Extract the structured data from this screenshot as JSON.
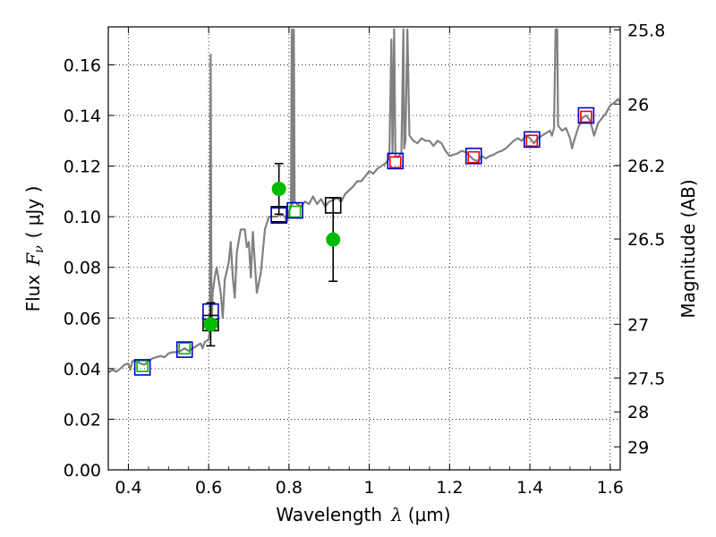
{
  "chart_data": {
    "type": "scatter",
    "xlabel_text": "Wavelength",
    "xlabel_symbol": "λ",
    "xlabel_unit": "(μm)",
    "ylabel_text": "Flux",
    "ylabel_symbol": "F",
    "ylabel_subscript": "ν",
    "ylabel_unit": "( μJy )",
    "y2label": "Magnitude (AB)",
    "xlim": [
      0.35,
      1.625
    ],
    "ylim": [
      0.0,
      0.175
    ],
    "xticks": [
      0.4,
      0.6,
      0.8,
      1.0,
      1.2,
      1.4,
      1.6
    ],
    "xtick_labels": [
      "0.4",
      "0.6",
      "0.8",
      "1",
      "1.2",
      "1.4",
      "1.6"
    ],
    "yticks": [
      0.0,
      0.02,
      0.04,
      0.06,
      0.08,
      0.1,
      0.12,
      0.14,
      0.16
    ],
    "ytick_labels": [
      "0.00",
      "0.02",
      "0.04",
      "0.06",
      "0.08",
      "0.10",
      "0.12",
      "0.14",
      "0.16"
    ],
    "y2ticks": [
      {
        "label": "25.8",
        "flux": 0.1738
      },
      {
        "label": "26",
        "flux": 0.1445
      },
      {
        "label": "26.2",
        "flux": 0.1202
      },
      {
        "label": "26.5",
        "flux": 0.0912
      },
      {
        "label": "27",
        "flux": 0.0575
      },
      {
        "label": "27.5",
        "flux": 0.0363
      },
      {
        "label": "28",
        "flux": 0.0229
      },
      {
        "label": "29",
        "flux": 0.0091
      }
    ],
    "grid": "dotted",
    "colors": {
      "sed_line": "#808080",
      "green_points": "#00bb00",
      "blue_squares": "#0000cc",
      "red_squares": "#ff0000",
      "green_squares": "#00bb00",
      "black_squares": "#000000",
      "errorbars": "#000000"
    },
    "series": [
      {
        "name": "model-sed",
        "style": "line",
        "points": [
          [
            0.35,
            0.0385
          ],
          [
            0.36,
            0.0395
          ],
          [
            0.37,
            0.0388
          ],
          [
            0.38,
            0.04
          ],
          [
            0.39,
            0.0415
          ],
          [
            0.4,
            0.042
          ],
          [
            0.405,
            0.0395
          ],
          [
            0.41,
            0.043
          ],
          [
            0.42,
            0.043
          ],
          [
            0.43,
            0.042
          ],
          [
            0.44,
            0.0415
          ],
          [
            0.45,
            0.043
          ],
          [
            0.46,
            0.044
          ],
          [
            0.47,
            0.0445
          ],
          [
            0.48,
            0.045
          ],
          [
            0.49,
            0.0445
          ],
          [
            0.5,
            0.046
          ],
          [
            0.51,
            0.0465
          ],
          [
            0.52,
            0.0465
          ],
          [
            0.53,
            0.047
          ],
          [
            0.54,
            0.048
          ],
          [
            0.55,
            0.047
          ],
          [
            0.56,
            0.048
          ],
          [
            0.57,
            0.049
          ],
          [
            0.58,
            0.05
          ],
          [
            0.585,
            0.048
          ],
          [
            0.59,
            0.0505
          ],
          [
            0.6,
            0.0515
          ],
          [
            0.603,
            0.056
          ],
          [
            0.605,
            0.164
          ],
          [
            0.607,
            0.056
          ],
          [
            0.61,
            0.07
          ],
          [
            0.615,
            0.076
          ],
          [
            0.62,
            0.08
          ],
          [
            0.63,
            0.07
          ],
          [
            0.635,
            0.06
          ],
          [
            0.64,
            0.075
          ],
          [
            0.65,
            0.082
          ],
          [
            0.655,
            0.09
          ],
          [
            0.66,
            0.076
          ],
          [
            0.665,
            0.068
          ],
          [
            0.67,
            0.086
          ],
          [
            0.68,
            0.095
          ],
          [
            0.69,
            0.095
          ],
          [
            0.695,
            0.088
          ],
          [
            0.7,
            0.09
          ],
          [
            0.705,
            0.076
          ],
          [
            0.71,
            0.094
          ],
          [
            0.715,
            0.082
          ],
          [
            0.72,
            0.07
          ],
          [
            0.73,
            0.078
          ],
          [
            0.74,
            0.095
          ],
          [
            0.75,
            0.1
          ],
          [
            0.76,
            0.1
          ],
          [
            0.77,
            0.1
          ],
          [
            0.78,
            0.101
          ],
          [
            0.79,
            0.1
          ],
          [
            0.795,
            0.098
          ],
          [
            0.8,
            0.102
          ],
          [
            0.805,
            0.104
          ],
          [
            0.807,
            0.174
          ],
          [
            0.809,
            0.105
          ],
          [
            0.812,
            0.174
          ],
          [
            0.814,
            0.106
          ],
          [
            0.82,
            0.105
          ],
          [
            0.83,
            0.104
          ],
          [
            0.84,
            0.106
          ],
          [
            0.85,
            0.105
          ],
          [
            0.86,
            0.108
          ],
          [
            0.87,
            0.105
          ],
          [
            0.88,
            0.107
          ],
          [
            0.89,
            0.104
          ],
          [
            0.9,
            0.106
          ],
          [
            0.91,
            0.1065
          ],
          [
            0.92,
            0.1075
          ],
          [
            0.93,
            0.106
          ],
          [
            0.94,
            0.109
          ],
          [
            0.95,
            0.1105
          ],
          [
            0.96,
            0.112
          ],
          [
            0.97,
            0.114
          ],
          [
            0.98,
            0.114
          ],
          [
            0.99,
            0.116
          ],
          [
            1.0,
            0.118
          ],
          [
            1.01,
            0.117
          ],
          [
            1.02,
            0.119
          ],
          [
            1.03,
            0.12
          ],
          [
            1.04,
            0.121
          ],
          [
            1.05,
            0.123
          ],
          [
            1.055,
            0.17
          ],
          [
            1.058,
            0.125
          ],
          [
            1.062,
            0.174
          ],
          [
            1.065,
            0.124
          ],
          [
            1.07,
            0.1235
          ],
          [
            1.08,
            0.125
          ],
          [
            1.085,
            0.174
          ],
          [
            1.087,
            0.127
          ],
          [
            1.09,
            0.13
          ],
          [
            1.095,
            0.174
          ],
          [
            1.1,
            0.132
          ],
          [
            1.11,
            0.13
          ],
          [
            1.12,
            0.129
          ],
          [
            1.13,
            0.131
          ],
          [
            1.14,
            0.13
          ],
          [
            1.15,
            0.13
          ],
          [
            1.16,
            0.128
          ],
          [
            1.17,
            0.13
          ],
          [
            1.18,
            0.129
          ],
          [
            1.19,
            0.126
          ],
          [
            1.2,
            0.124
          ],
          [
            1.21,
            0.1245
          ],
          [
            1.22,
            0.125
          ],
          [
            1.23,
            0.126
          ],
          [
            1.24,
            0.1255
          ],
          [
            1.25,
            0.124
          ],
          [
            1.26,
            0.1225
          ],
          [
            1.27,
            0.122
          ],
          [
            1.28,
            0.124
          ],
          [
            1.29,
            0.123
          ],
          [
            1.3,
            0.124
          ],
          [
            1.31,
            0.1245
          ],
          [
            1.32,
            0.1255
          ],
          [
            1.33,
            0.126
          ],
          [
            1.34,
            0.127
          ],
          [
            1.35,
            0.1285
          ],
          [
            1.36,
            0.13
          ],
          [
            1.37,
            0.131
          ],
          [
            1.38,
            0.13
          ],
          [
            1.39,
            0.132
          ],
          [
            1.4,
            0.131
          ],
          [
            1.41,
            0.129
          ],
          [
            1.42,
            0.131
          ],
          [
            1.43,
            0.132
          ],
          [
            1.44,
            0.133
          ],
          [
            1.45,
            0.134
          ],
          [
            1.455,
            0.132
          ],
          [
            1.46,
            0.135
          ],
          [
            1.464,
            0.174
          ],
          [
            1.468,
            0.174
          ],
          [
            1.47,
            0.136
          ],
          [
            1.48,
            0.134
          ],
          [
            1.49,
            0.135
          ],
          [
            1.5,
            0.131
          ],
          [
            1.505,
            0.127
          ],
          [
            1.51,
            0.13
          ],
          [
            1.52,
            0.135
          ],
          [
            1.53,
            0.139
          ],
          [
            1.54,
            0.14
          ],
          [
            1.55,
            0.138
          ],
          [
            1.56,
            0.132
          ],
          [
            1.57,
            0.137
          ],
          [
            1.58,
            0.139
          ],
          [
            1.59,
            0.141
          ],
          [
            1.6,
            0.144
          ],
          [
            1.61,
            0.145
          ],
          [
            1.62,
            0.1465
          ],
          [
            1.625,
            0.145
          ]
        ]
      },
      {
        "name": "observed-flux",
        "style": "points",
        "points": [
          {
            "x": 0.605,
            "y": 0.0575,
            "yerr_low": 0.049,
            "yerr_high": 0.066
          },
          {
            "x": 0.775,
            "y": 0.111,
            "yerr_low": 0.101,
            "yerr_high": 0.121
          },
          {
            "x": 0.91,
            "y": 0.091,
            "yerr_low": 0.0745,
            "yerr_high": 0.1075
          }
        ]
      },
      {
        "name": "model-bandpass-blue",
        "style": "squares",
        "points": [
          [
            0.435,
            0.0405
          ],
          [
            0.54,
            0.0475
          ],
          [
            0.605,
            0.0625
          ],
          [
            0.775,
            0.1005
          ],
          [
            0.815,
            0.1025
          ],
          [
            1.065,
            0.122
          ],
          [
            1.26,
            0.124
          ],
          [
            1.405,
            0.1305
          ],
          [
            1.54,
            0.14
          ]
        ]
      },
      {
        "name": "model-bandpass-red",
        "style": "squares",
        "points": [
          [
            1.065,
            0.1215
          ],
          [
            1.26,
            0.1235
          ],
          [
            1.405,
            0.13
          ],
          [
            1.54,
            0.1395
          ]
        ]
      },
      {
        "name": "model-bandpass-green",
        "style": "squares",
        "points": [
          [
            0.435,
            0.041
          ],
          [
            0.54,
            0.048
          ],
          [
            0.815,
            0.102
          ]
        ]
      },
      {
        "name": "model-bandpass-black",
        "style": "squares",
        "points": [
          [
            0.605,
            0.058
          ],
          [
            0.775,
            0.101
          ],
          [
            0.91,
            0.1045
          ]
        ]
      }
    ]
  }
}
